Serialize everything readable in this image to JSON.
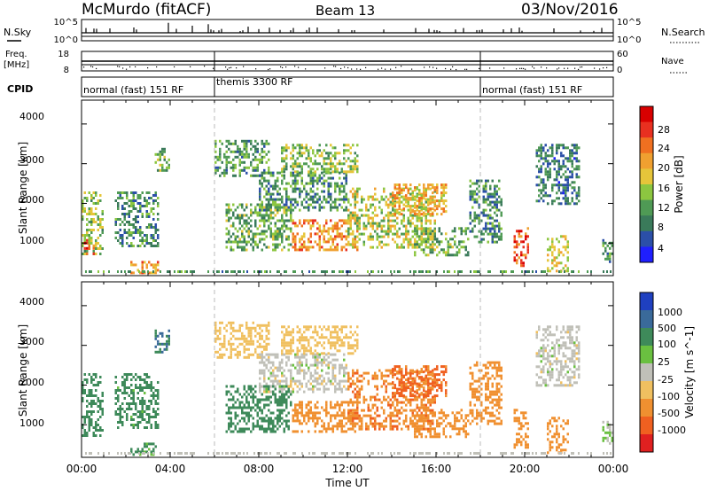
{
  "header": {
    "station": "McMurdo (fitACF)",
    "beam": "Beam 13",
    "date": "03/Nov/2016"
  },
  "top_panels": {
    "nsky_label": "N.Sky",
    "nsky_ticks": [
      "10^5",
      "10^0"
    ],
    "nsearch_label": "N.Search",
    "nsearch_ticks": [
      "10^5",
      "10^0"
    ],
    "freq_label": "Freq.",
    "freq_unit": "[MHz]",
    "freq_ticks": [
      "18",
      "8"
    ],
    "nave_label": "Nave",
    "nave_ticks": [
      "60",
      "0"
    ],
    "cpid_label": "CPID",
    "cpid_segments": [
      {
        "text": "normal (fast) 151 RF",
        "start_h": 0,
        "end_h": 6
      },
      {
        "text": "themis 3300 RF",
        "start_h": 6,
        "end_h": 18
      },
      {
        "text": "normal (fast) 151 RF",
        "start_h": 18,
        "end_h": 24
      }
    ]
  },
  "power_panel": {
    "ylabel": "Slant Range [km]",
    "yticks": [
      "4000",
      "3000",
      "2000",
      "1000"
    ],
    "colorbar_label": "Power [dB]",
    "colorbar_ticks": [
      "28",
      "24",
      "20",
      "16",
      "12",
      "8",
      "4"
    ]
  },
  "velocity_panel": {
    "ylabel": "Slant Range [km]",
    "yticks": [
      "4000",
      "3000",
      "2000",
      "1000"
    ],
    "colorbar_label": "Velocity [m s^-1]",
    "colorbar_ticks": [
      "1000",
      "500",
      "100",
      "25",
      "-25",
      "-100",
      "-500",
      "-1000"
    ]
  },
  "xaxis": {
    "label": "Time UT",
    "ticks": [
      "00:00",
      "04:00",
      "08:00",
      "12:00",
      "16:00",
      "20:00",
      "00:00"
    ]
  },
  "colors": {
    "power_scale": [
      "#1f1fff",
      "#2b4fa8",
      "#3a7a5a",
      "#4f9a55",
      "#8cc640",
      "#e6c53a",
      "#f0a030",
      "#f07020",
      "#e83020",
      "#d80000"
    ],
    "velocity_scale": [
      "#1f40c0",
      "#3a6a9a",
      "#3e8a5a",
      "#6ac040",
      "#c0c0b8",
      "#f0c060",
      "#f09030",
      "#f06020",
      "#e02020"
    ]
  },
  "chart_data": [
    {
      "type": "heatmap",
      "title": "Power",
      "xlabel": "Time UT",
      "ylabel": "Slant Range [km]",
      "xlim_hours": [
        0,
        24
      ],
      "ylim_km": [
        180,
        4600
      ],
      "colorbar": {
        "label": "Power [dB]",
        "range": [
          0,
          32
        ]
      },
      "echo_regions": [
        {
          "t0": 0.0,
          "t1": 1.0,
          "r0": 700,
          "r1": 2300,
          "value": 14
        },
        {
          "t0": 0.1,
          "t1": 0.6,
          "r0": 750,
          "r1": 1100,
          "value": 26
        },
        {
          "t0": 2.2,
          "t1": 3.5,
          "r0": 280,
          "r1": 550,
          "value": 22
        },
        {
          "t0": 1.5,
          "t1": 3.5,
          "r0": 900,
          "r1": 2300,
          "value": 9
        },
        {
          "t0": 3.3,
          "t1": 4.0,
          "r0": 2800,
          "r1": 3400,
          "value": 12
        },
        {
          "t0": 6.0,
          "t1": 8.5,
          "r0": 2700,
          "r1": 3600,
          "value": 11
        },
        {
          "t0": 6.5,
          "t1": 9.5,
          "r0": 800,
          "r1": 2000,
          "value": 12
        },
        {
          "t0": 8.0,
          "t1": 12.0,
          "r0": 1800,
          "r1": 2800,
          "value": 10
        },
        {
          "t0": 9.0,
          "t1": 12.5,
          "r0": 2800,
          "r1": 3500,
          "value": 14
        },
        {
          "t0": 9.5,
          "t1": 12.5,
          "r0": 800,
          "r1": 1600,
          "value": 22
        },
        {
          "t0": 12.0,
          "t1": 16.0,
          "r0": 900,
          "r1": 2400,
          "value": 16
        },
        {
          "t0": 14.0,
          "t1": 16.5,
          "r0": 1700,
          "r1": 2500,
          "value": 20
        },
        {
          "t0": 15.0,
          "t1": 17.5,
          "r0": 700,
          "r1": 1400,
          "value": 12
        },
        {
          "t0": 17.5,
          "t1": 19.0,
          "r0": 1000,
          "r1": 2600,
          "value": 9
        },
        {
          "t0": 19.5,
          "t1": 20.2,
          "r0": 400,
          "r1": 1400,
          "value": 26
        },
        {
          "t0": 20.5,
          "t1": 22.5,
          "r0": 2000,
          "r1": 3500,
          "value": 8
        },
        {
          "t0": 21.0,
          "t1": 22.0,
          "r0": 300,
          "r1": 1200,
          "value": 18
        },
        {
          "t0": 23.5,
          "t1": 24.0,
          "r0": 500,
          "r1": 1100,
          "value": 10
        }
      ]
    },
    {
      "type": "heatmap",
      "title": "Velocity",
      "xlabel": "Time UT",
      "ylabel": "Slant Range [km]",
      "xlim_hours": [
        0,
        24
      ],
      "ylim_km": [
        180,
        4600
      ],
      "colorbar": {
        "label": "Velocity [m s^-1]",
        "range": [
          -1000,
          1000
        ]
      },
      "echo_regions": [
        {
          "t0": 0.0,
          "t1": 1.0,
          "r0": 700,
          "r1": 2300,
          "value": 300
        },
        {
          "t0": 1.5,
          "t1": 3.5,
          "r0": 900,
          "r1": 2300,
          "value": 200
        },
        {
          "t0": 2.2,
          "t1": 3.5,
          "r0": 280,
          "r1": 550,
          "value": 150
        },
        {
          "t0": 3.3,
          "t1": 4.0,
          "r0": 2800,
          "r1": 3400,
          "value": 500
        },
        {
          "t0": 6.0,
          "t1": 8.5,
          "r0": 2700,
          "r1": 3600,
          "value": -40
        },
        {
          "t0": 6.5,
          "t1": 9.5,
          "r0": 800,
          "r1": 2000,
          "value": 300
        },
        {
          "t0": 8.0,
          "t1": 12.0,
          "r0": 1800,
          "r1": 2800,
          "value": 0
        },
        {
          "t0": 9.0,
          "t1": 12.5,
          "r0": 2800,
          "r1": 3500,
          "value": -80
        },
        {
          "t0": 9.5,
          "t1": 12.5,
          "r0": 800,
          "r1": 1600,
          "value": -120
        },
        {
          "t0": 12.0,
          "t1": 16.0,
          "r0": 900,
          "r1": 2400,
          "value": -450
        },
        {
          "t0": 14.0,
          "t1": 16.5,
          "r0": 1700,
          "r1": 2500,
          "value": -600
        },
        {
          "t0": 15.0,
          "t1": 17.5,
          "r0": 700,
          "r1": 1400,
          "value": -300
        },
        {
          "t0": 17.5,
          "t1": 19.0,
          "r0": 1000,
          "r1": 2600,
          "value": -300
        },
        {
          "t0": 19.5,
          "t1": 20.2,
          "r0": 400,
          "r1": 1400,
          "value": -150
        },
        {
          "t0": 20.5,
          "t1": 22.5,
          "r0": 2000,
          "r1": 3500,
          "value": 0
        },
        {
          "t0": 21.0,
          "t1": 22.0,
          "r0": 300,
          "r1": 1200,
          "value": -200
        },
        {
          "t0": 23.5,
          "t1": 24.0,
          "r0": 500,
          "r1": 1100,
          "value": 40
        }
      ]
    }
  ]
}
